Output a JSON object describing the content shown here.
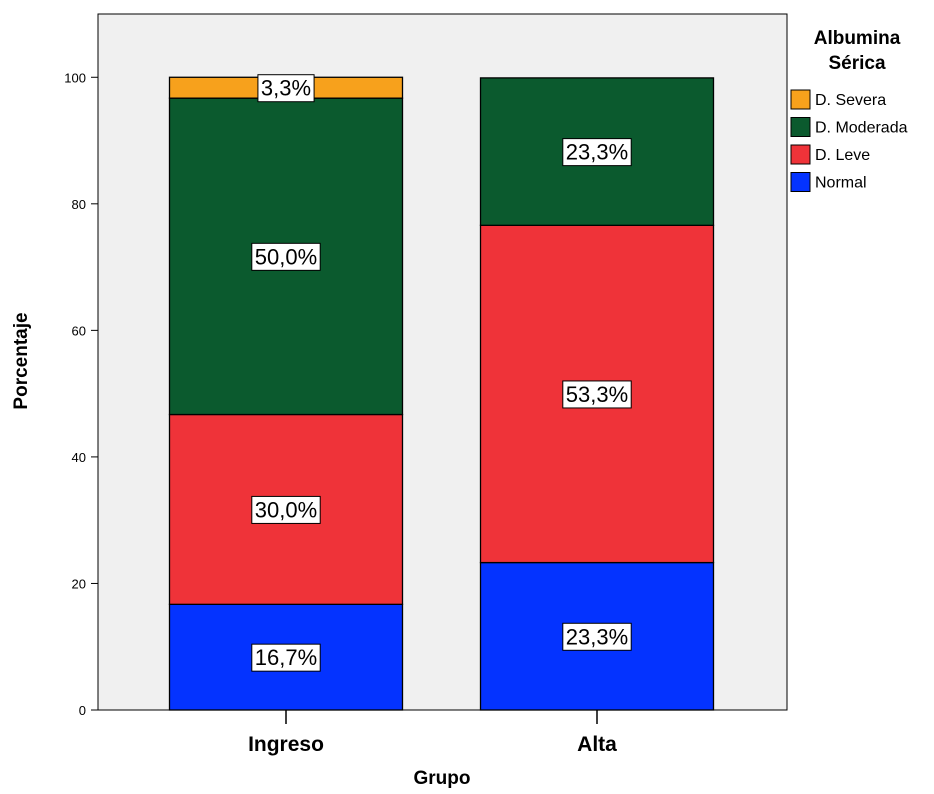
{
  "chart_data": {
    "type": "bar",
    "stacked": true,
    "categories": [
      "Ingreso",
      "Alta"
    ],
    "series": [
      {
        "name": "Normal",
        "values": [
          16.7,
          23.3
        ],
        "labels": [
          "16,7%",
          "23,3%"
        ],
        "color": "#0433FF"
      },
      {
        "name": "D. Leve",
        "values": [
          30.0,
          53.3
        ],
        "labels": [
          "30,0%",
          "53,3%"
        ],
        "color": "#EF3339"
      },
      {
        "name": "D. Moderada",
        "values": [
          50.0,
          23.3
        ],
        "labels": [
          "50,0%",
          "23,3%"
        ],
        "color": "#0B5A2E"
      },
      {
        "name": "D. Severa",
        "values": [
          3.3,
          0
        ],
        "labels": [
          "3,3%",
          ""
        ],
        "color": "#F7A11C"
      }
    ],
    "xlabel": "Grupo",
    "ylabel": "Porcentaje",
    "ylim": [
      0,
      110
    ],
    "yticks": [
      0,
      20,
      40,
      60,
      80,
      100
    ],
    "legend_title": [
      "Albumina",
      "Sérica"
    ],
    "legend_placement": "top-right",
    "plot_background": "#F0F0F0",
    "grid": false
  }
}
